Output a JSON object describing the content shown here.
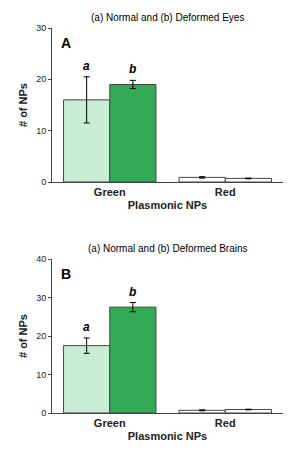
{
  "chart_data": [
    {
      "type": "bar",
      "title": "(a) Normal and (b) Deformed Eyes",
      "annotations": [
        {
          "text": "A"
        },
        {
          "text": "a",
          "category": "Green",
          "series": 0
        },
        {
          "text": "b",
          "category": "Green",
          "series": 1
        }
      ],
      "xlabel": "Plasmonic NPs",
      "ylabel": "# of NPs",
      "categories": [
        "Green",
        "Red"
      ],
      "series": [
        {
          "values": [
            16.0,
            0.9
          ],
          "errors": [
            4.5,
            0.15
          ],
          "colors": [
            "#c8ecd4",
            "#ffffff"
          ]
        },
        {
          "values": [
            19.0,
            0.7
          ],
          "errors": [
            0.8,
            0.08
          ],
          "colors": [
            "#33aa55",
            "#ffffff"
          ]
        }
      ],
      "ylim": [
        0,
        30
      ],
      "yticks": [
        0,
        10,
        20,
        30
      ],
      "grid": false
    },
    {
      "type": "bar",
      "title": "(a) Normal and (b) Deformed Brains",
      "annotations": [
        {
          "text": "B"
        },
        {
          "text": "a",
          "category": "Green",
          "series": 0
        },
        {
          "text": "b",
          "category": "Green",
          "series": 1
        }
      ],
      "xlabel": "Plasmonic NPs",
      "ylabel": "# of NPs",
      "categories": [
        "Green",
        "Red"
      ],
      "series": [
        {
          "values": [
            17.5,
            0.7
          ],
          "errors": [
            2.0,
            0.12
          ],
          "colors": [
            "#c8ecd4",
            "#ffffff"
          ]
        },
        {
          "values": [
            27.5,
            0.9
          ],
          "errors": [
            1.2,
            0.08
          ],
          "colors": [
            "#33aa55",
            "#ffffff"
          ]
        }
      ],
      "ylim": [
        0,
        40
      ],
      "yticks": [
        0,
        10,
        20,
        30,
        40
      ],
      "grid": false
    }
  ]
}
